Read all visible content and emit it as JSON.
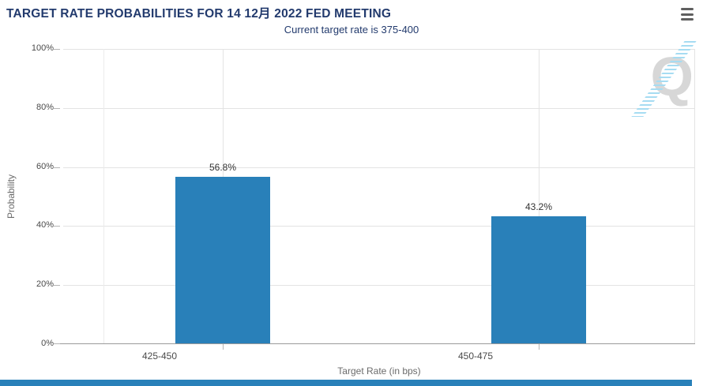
{
  "header": {
    "menu_icon": "hamburger-icon"
  },
  "chart_data": {
    "type": "bar",
    "title": "TARGET RATE PROBABILITIES FOR 14 12月 2022 FED MEETING",
    "subtitle": "Current target rate is 375-400",
    "categories": [
      "425-450",
      "450-475"
    ],
    "values": [
      56.8,
      43.2
    ],
    "value_labels": [
      "56.8%",
      "43.2%"
    ],
    "xlabel": "Target Rate (in bps)",
    "ylabel": "Probability",
    "ylim": [
      0,
      100
    ],
    "ytick_labels": [
      "100%",
      "80%",
      "60%",
      "40%",
      "20%",
      "0%"
    ],
    "grid": true,
    "legend": "none",
    "bar_color": "#2980b9"
  },
  "watermark": {
    "letter": "Q"
  },
  "colors": {
    "bar": "#2980b9",
    "title": "#223a6d",
    "axis_text": "#4a4a4a",
    "grid": "#e3e3e3",
    "axis_line": "#9b9b9b",
    "footer_bar": "#2980b9",
    "watermark_stripe": "#a6dcf2",
    "watermark_letter": "#d7d7d7",
    "menu_icon": "#5f5f5f"
  }
}
